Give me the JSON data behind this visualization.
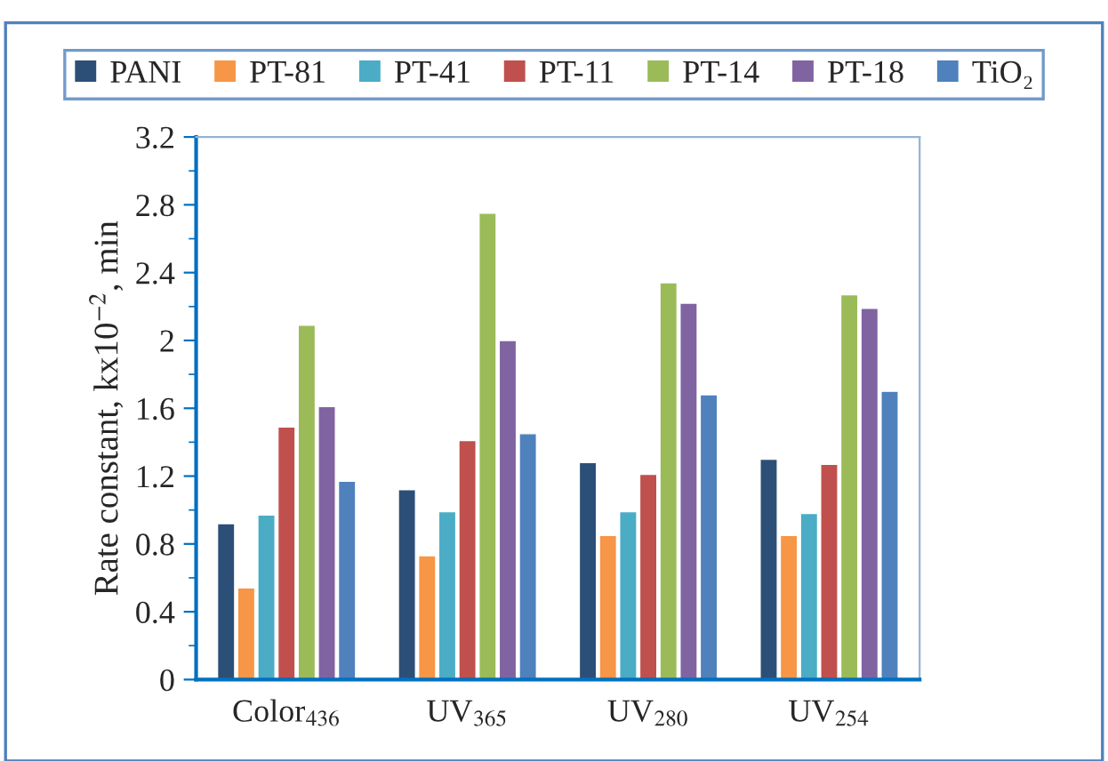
{
  "chart_data": {
    "type": "bar",
    "ylabel": "Rate constant, kx10$^{−2}$, min",
    "categories": [
      "Color$_{436}$",
      "UV$_{365}$",
      "UV$_{280}$",
      "UV$_{254}$"
    ],
    "series": [
      {
        "name": "PANI",
        "color": "#2c4f78",
        "values": [
          0.92,
          1.12,
          1.28,
          1.3
        ]
      },
      {
        "name": "PT-81",
        "color": "#f79646",
        "values": [
          0.54,
          0.73,
          0.85,
          0.85
        ]
      },
      {
        "name": "PT-41",
        "color": "#4bacc6",
        "values": [
          0.97,
          0.99,
          0.99,
          0.98
        ]
      },
      {
        "name": "PT-11",
        "color": "#c0504d",
        "values": [
          1.49,
          1.41,
          1.21,
          1.27
        ]
      },
      {
        "name": "PT-14",
        "color": "#9bbb59",
        "values": [
          2.09,
          2.75,
          2.34,
          2.27
        ]
      },
      {
        "name": "PT-18",
        "color": "#8064a2",
        "values": [
          1.61,
          2.0,
          2.22,
          2.19
        ]
      },
      {
        "name": "TiO₂",
        "color": "#4f81bd",
        "values": [
          1.17,
          1.45,
          1.68,
          1.7
        ]
      }
    ],
    "ylim": [
      0,
      3.2
    ],
    "yticks": [
      0,
      0.4,
      0.8,
      1.2,
      1.6,
      2,
      2.4,
      2.8,
      3.2
    ],
    "grid": false,
    "legend": "top"
  }
}
